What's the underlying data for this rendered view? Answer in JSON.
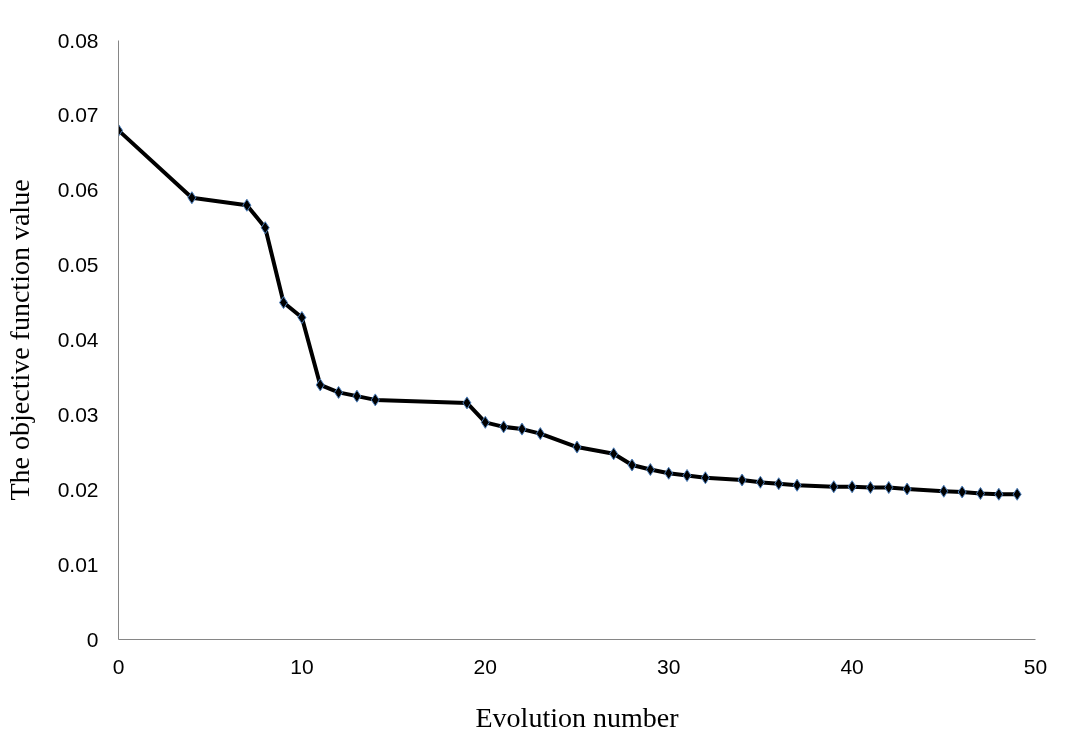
{
  "chart_data": {
    "type": "line",
    "xlabel": "Evolution number",
    "ylabel": "The objective function value",
    "x": [
      0,
      4,
      7,
      8,
      9,
      10,
      11,
      12,
      13,
      14,
      19,
      20,
      21,
      22,
      23,
      25,
      27,
      28,
      29,
      30,
      31,
      32,
      34,
      35,
      36,
      37,
      39,
      40,
      41,
      42,
      43,
      45,
      46,
      47,
      48,
      49
    ],
    "series": [
      {
        "color": "#000000",
        "values": [
          0.068,
          0.059,
          0.058,
          0.055,
          0.045,
          0.043,
          0.034,
          0.033,
          0.0325,
          0.032,
          0.0316,
          0.029,
          0.0284,
          0.0281,
          0.0275,
          0.0257,
          0.0248,
          0.0233,
          0.0227,
          0.0222,
          0.0219,
          0.0216,
          0.0213,
          0.021,
          0.0208,
          0.0206,
          0.0204,
          0.0204,
          0.0203,
          0.0203,
          0.0201,
          0.0198,
          0.0197,
          0.0195,
          0.0194,
          0.0194
        ]
      }
    ],
    "xlim": [
      0,
      50
    ],
    "xticks": [
      0,
      10,
      20,
      30,
      40,
      50
    ],
    "ylim": [
      0,
      0.08
    ],
    "yticks": [
      0,
      0.01,
      0.02,
      0.03,
      0.04,
      0.05,
      0.06,
      0.07,
      0.08
    ],
    "grid": false,
    "marker": "diamond",
    "line_style": "solid"
  }
}
